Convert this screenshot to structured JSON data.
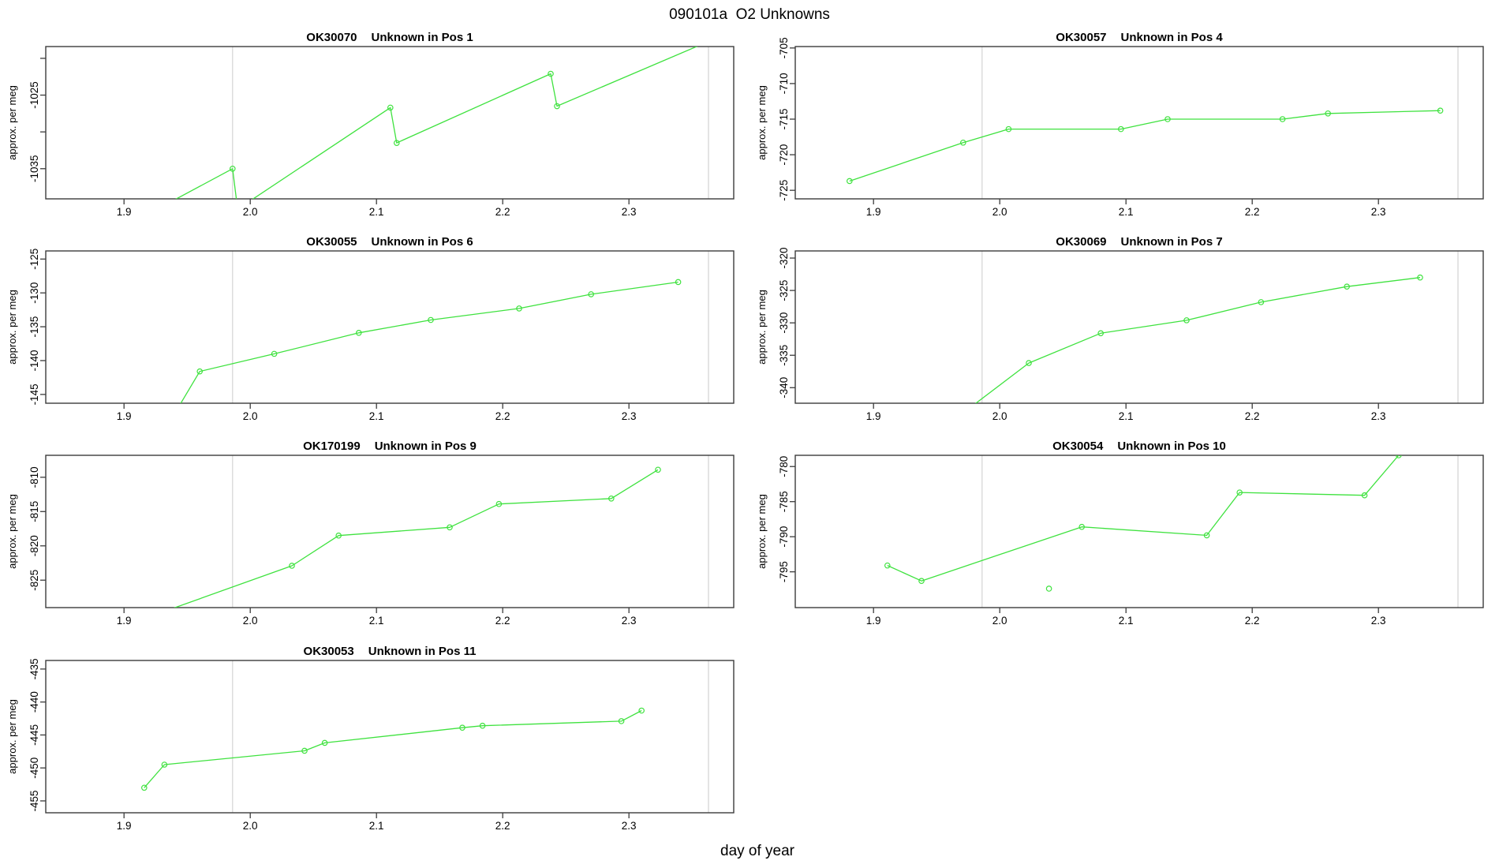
{
  "page": {
    "title": "090101a  O2 Unknowns"
  },
  "axes": {
    "xlabel": "day of year",
    "xlim": [
      1.838,
      2.383
    ],
    "xticks": [
      1.9,
      2.0,
      2.1,
      2.2,
      2.3
    ],
    "xtick_labels": [
      "1.9",
      "2.0",
      "2.1",
      "2.2",
      "2.3"
    ],
    "reference_lines_x": [
      1.986,
      2.363
    ],
    "grid": "off",
    "legend": "none"
  },
  "style": {
    "series_color": "#3fe23f",
    "reference_line_color": "#d3d3d3",
    "frame_color": "#3c3c3c",
    "text_color": "#000000",
    "marker": "open-circle"
  },
  "chart_data": [
    {
      "type": "line",
      "name": "OK30070",
      "subtitle": "Unknown in Pos 1",
      "ylabel": "approx. per meg",
      "row": 0,
      "col": 0,
      "ylim": [
        -1039.1,
        -1018.4
      ],
      "yticks": [
        -1035,
        -1030,
        -1025,
        -1020
      ],
      "ytick_labels": [
        "-1035",
        "",
        "-1025",
        ""
      ],
      "points": [
        [
          1.91,
          -1042.0
        ],
        [
          1.986,
          -1035.0
        ],
        [
          1.99,
          -1040.5
        ],
        [
          2.111,
          -1026.7
        ],
        [
          2.116,
          -1031.5
        ],
        [
          2.238,
          -1022.1
        ],
        [
          2.243,
          -1026.5
        ],
        [
          2.37,
          -1017.2
        ]
      ],
      "isolated_points": []
    },
    {
      "type": "line",
      "name": "OK30057",
      "subtitle": "Unknown in Pos 4",
      "ylabel": "approx. per meg",
      "row": 0,
      "col": 1,
      "ylim": [
        -726.2,
        -704.8
      ],
      "yticks": [
        -725,
        -720,
        -715,
        -710,
        -705
      ],
      "ytick_labels": [
        "-725",
        "-720",
        "-715",
        "-710",
        "-705"
      ],
      "points": [
        [
          1.881,
          -723.7
        ],
        [
          1.971,
          -718.3
        ],
        [
          2.007,
          -716.4
        ],
        [
          2.096,
          -716.4
        ],
        [
          2.133,
          -715.0
        ],
        [
          2.224,
          -715.0
        ],
        [
          2.26,
          -714.2
        ],
        [
          2.349,
          -713.8
        ]
      ],
      "isolated_points": []
    },
    {
      "type": "line",
      "name": "OK30055",
      "subtitle": "Unknown in Pos 6",
      "ylabel": "approx. per meg",
      "row": 1,
      "col": 0,
      "ylim": [
        -146.3,
        -123.8
      ],
      "yticks": [
        -145,
        -140,
        -135,
        -130,
        -125
      ],
      "ytick_labels": [
        "-145",
        "-140",
        "-135",
        "-130",
        "-125"
      ],
      "points": [
        [
          1.93,
          -151.0
        ],
        [
          1.96,
          -141.6
        ],
        [
          2.019,
          -139.0
        ],
        [
          2.086,
          -135.9
        ],
        [
          2.143,
          -134.0
        ],
        [
          2.213,
          -132.3
        ],
        [
          2.27,
          -130.2
        ],
        [
          2.339,
          -128.4
        ]
      ],
      "isolated_points": []
    },
    {
      "type": "line",
      "name": "OK30069",
      "subtitle": "Unknown in Pos 7",
      "ylabel": "approx. per meg",
      "row": 1,
      "col": 1,
      "ylim": [
        -342.4,
        -318.9
      ],
      "yticks": [
        -340,
        -335,
        -330,
        -325,
        -320
      ],
      "ytick_labels": [
        "-340",
        "-335",
        "-330",
        "-325",
        "-320"
      ],
      "points": [
        [
          1.95,
          -347.0
        ],
        [
          2.023,
          -336.2
        ],
        [
          2.08,
          -331.6
        ],
        [
          2.148,
          -329.6
        ],
        [
          2.207,
          -326.8
        ],
        [
          2.275,
          -324.4
        ],
        [
          2.333,
          -323.0
        ]
      ],
      "isolated_points": []
    },
    {
      "type": "line",
      "name": "OK170199",
      "subtitle": "Unknown in Pos 9",
      "ylabel": "approx. per meg",
      "row": 2,
      "col": 0,
      "ylim": [
        -829.0,
        -806.8
      ],
      "yticks": [
        -825,
        -820,
        -815,
        -810
      ],
      "ytick_labels": [
        "-825",
        "-820",
        "-815",
        "-810"
      ],
      "points": [
        [
          1.91,
          -831.0
        ],
        [
          2.033,
          -822.9
        ],
        [
          2.07,
          -818.5
        ],
        [
          2.158,
          -817.3
        ],
        [
          2.197,
          -813.9
        ],
        [
          2.286,
          -813.1
        ],
        [
          2.323,
          -808.9
        ]
      ],
      "isolated_points": []
    },
    {
      "type": "line",
      "name": "OK30054",
      "subtitle": "Unknown in Pos 10",
      "ylabel": "approx. per meg",
      "row": 2,
      "col": 1,
      "ylim": [
        -800.1,
        -778.4
      ],
      "yticks": [
        -795,
        -790,
        -785,
        -780
      ],
      "ytick_labels": [
        "-795",
        "-790",
        "-785",
        "-780"
      ],
      "points": [
        [
          1.911,
          -794.1
        ],
        [
          1.938,
          -796.3
        ],
        [
          2.065,
          -788.6
        ],
        [
          2.164,
          -789.8
        ],
        [
          2.19,
          -783.7
        ],
        [
          2.289,
          -784.1
        ],
        [
          2.316,
          -778.4
        ]
      ],
      "isolated_points": [
        [
          2.039,
          -797.4
        ]
      ]
    },
    {
      "type": "line",
      "name": "OK30053",
      "subtitle": "Unknown in Pos 11",
      "ylabel": "approx. per meg",
      "row": 3,
      "col": 0,
      "ylim": [
        -456.8,
        -433.7
      ],
      "yticks": [
        -455,
        -450,
        -445,
        -440,
        -435
      ],
      "ytick_labels": [
        "-455",
        "-450",
        "-445",
        "-440",
        "-435"
      ],
      "points": [
        [
          1.916,
          -453.0
        ],
        [
          1.932,
          -449.5
        ],
        [
          2.043,
          -447.4
        ],
        [
          2.059,
          -446.2
        ],
        [
          2.168,
          -443.9
        ],
        [
          2.184,
          -443.6
        ],
        [
          2.294,
          -442.9
        ],
        [
          2.31,
          -441.3
        ]
      ],
      "isolated_points": []
    }
  ]
}
